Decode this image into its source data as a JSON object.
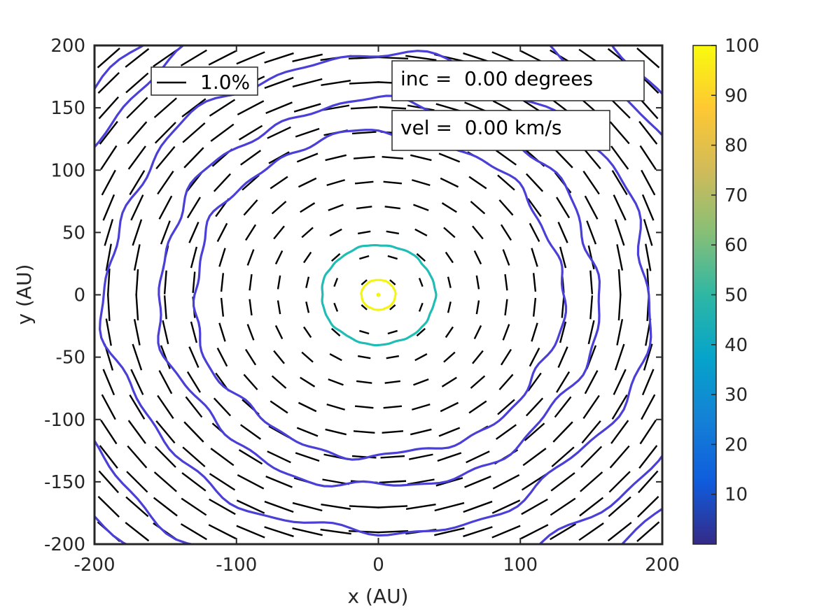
{
  "chart_data": {
    "type": "contour",
    "xlabel": "x (AU)",
    "ylabel": "y (AU)",
    "xlim": [
      -200,
      200
    ],
    "ylim": [
      -200,
      200
    ],
    "x_ticks": [
      -200,
      -100,
      0,
      100,
      200
    ],
    "y_ticks": [
      -200,
      -150,
      -100,
      -50,
      0,
      50,
      100,
      150,
      200
    ],
    "colorbar": {
      "range": [
        0,
        100
      ],
      "ticks": [
        10,
        20,
        30,
        40,
        50,
        60,
        70,
        80,
        90,
        100
      ],
      "colormap": "parula",
      "stops": [
        "#352a87",
        "#0f5cdd",
        "#1481d6",
        "#06a4ca",
        "#2eb7a4",
        "#87bf77",
        "#d1bb59",
        "#fec832",
        "#f9fb0e"
      ]
    },
    "contours": [
      {
        "level": 100,
        "radius_au": 12,
        "color": "#f5f514"
      },
      {
        "level": 50,
        "radius_au": 40,
        "color": "#1fbdb4"
      },
      {
        "level": 5,
        "radius_au": 130,
        "color": "#4a3fd6"
      },
      {
        "level": 5,
        "radius_au": 155,
        "color": "#4a3fd6"
      },
      {
        "level": 5,
        "radius_au": 192,
        "color": "#4a3fd6"
      },
      {
        "level": 5,
        "radius_au": 235,
        "color": "#4a3fd6"
      },
      {
        "level": 5,
        "radius_au": 262,
        "color": "#4a3fd6"
      }
    ],
    "vectors": {
      "pattern": "azimuthal",
      "legend_label": "1.0%",
      "legend_value_percent": 1.0
    },
    "annotations": [
      {
        "text": "inc =  0.00 degrees"
      },
      {
        "text": "vel =  0.00 km/s"
      }
    ]
  }
}
